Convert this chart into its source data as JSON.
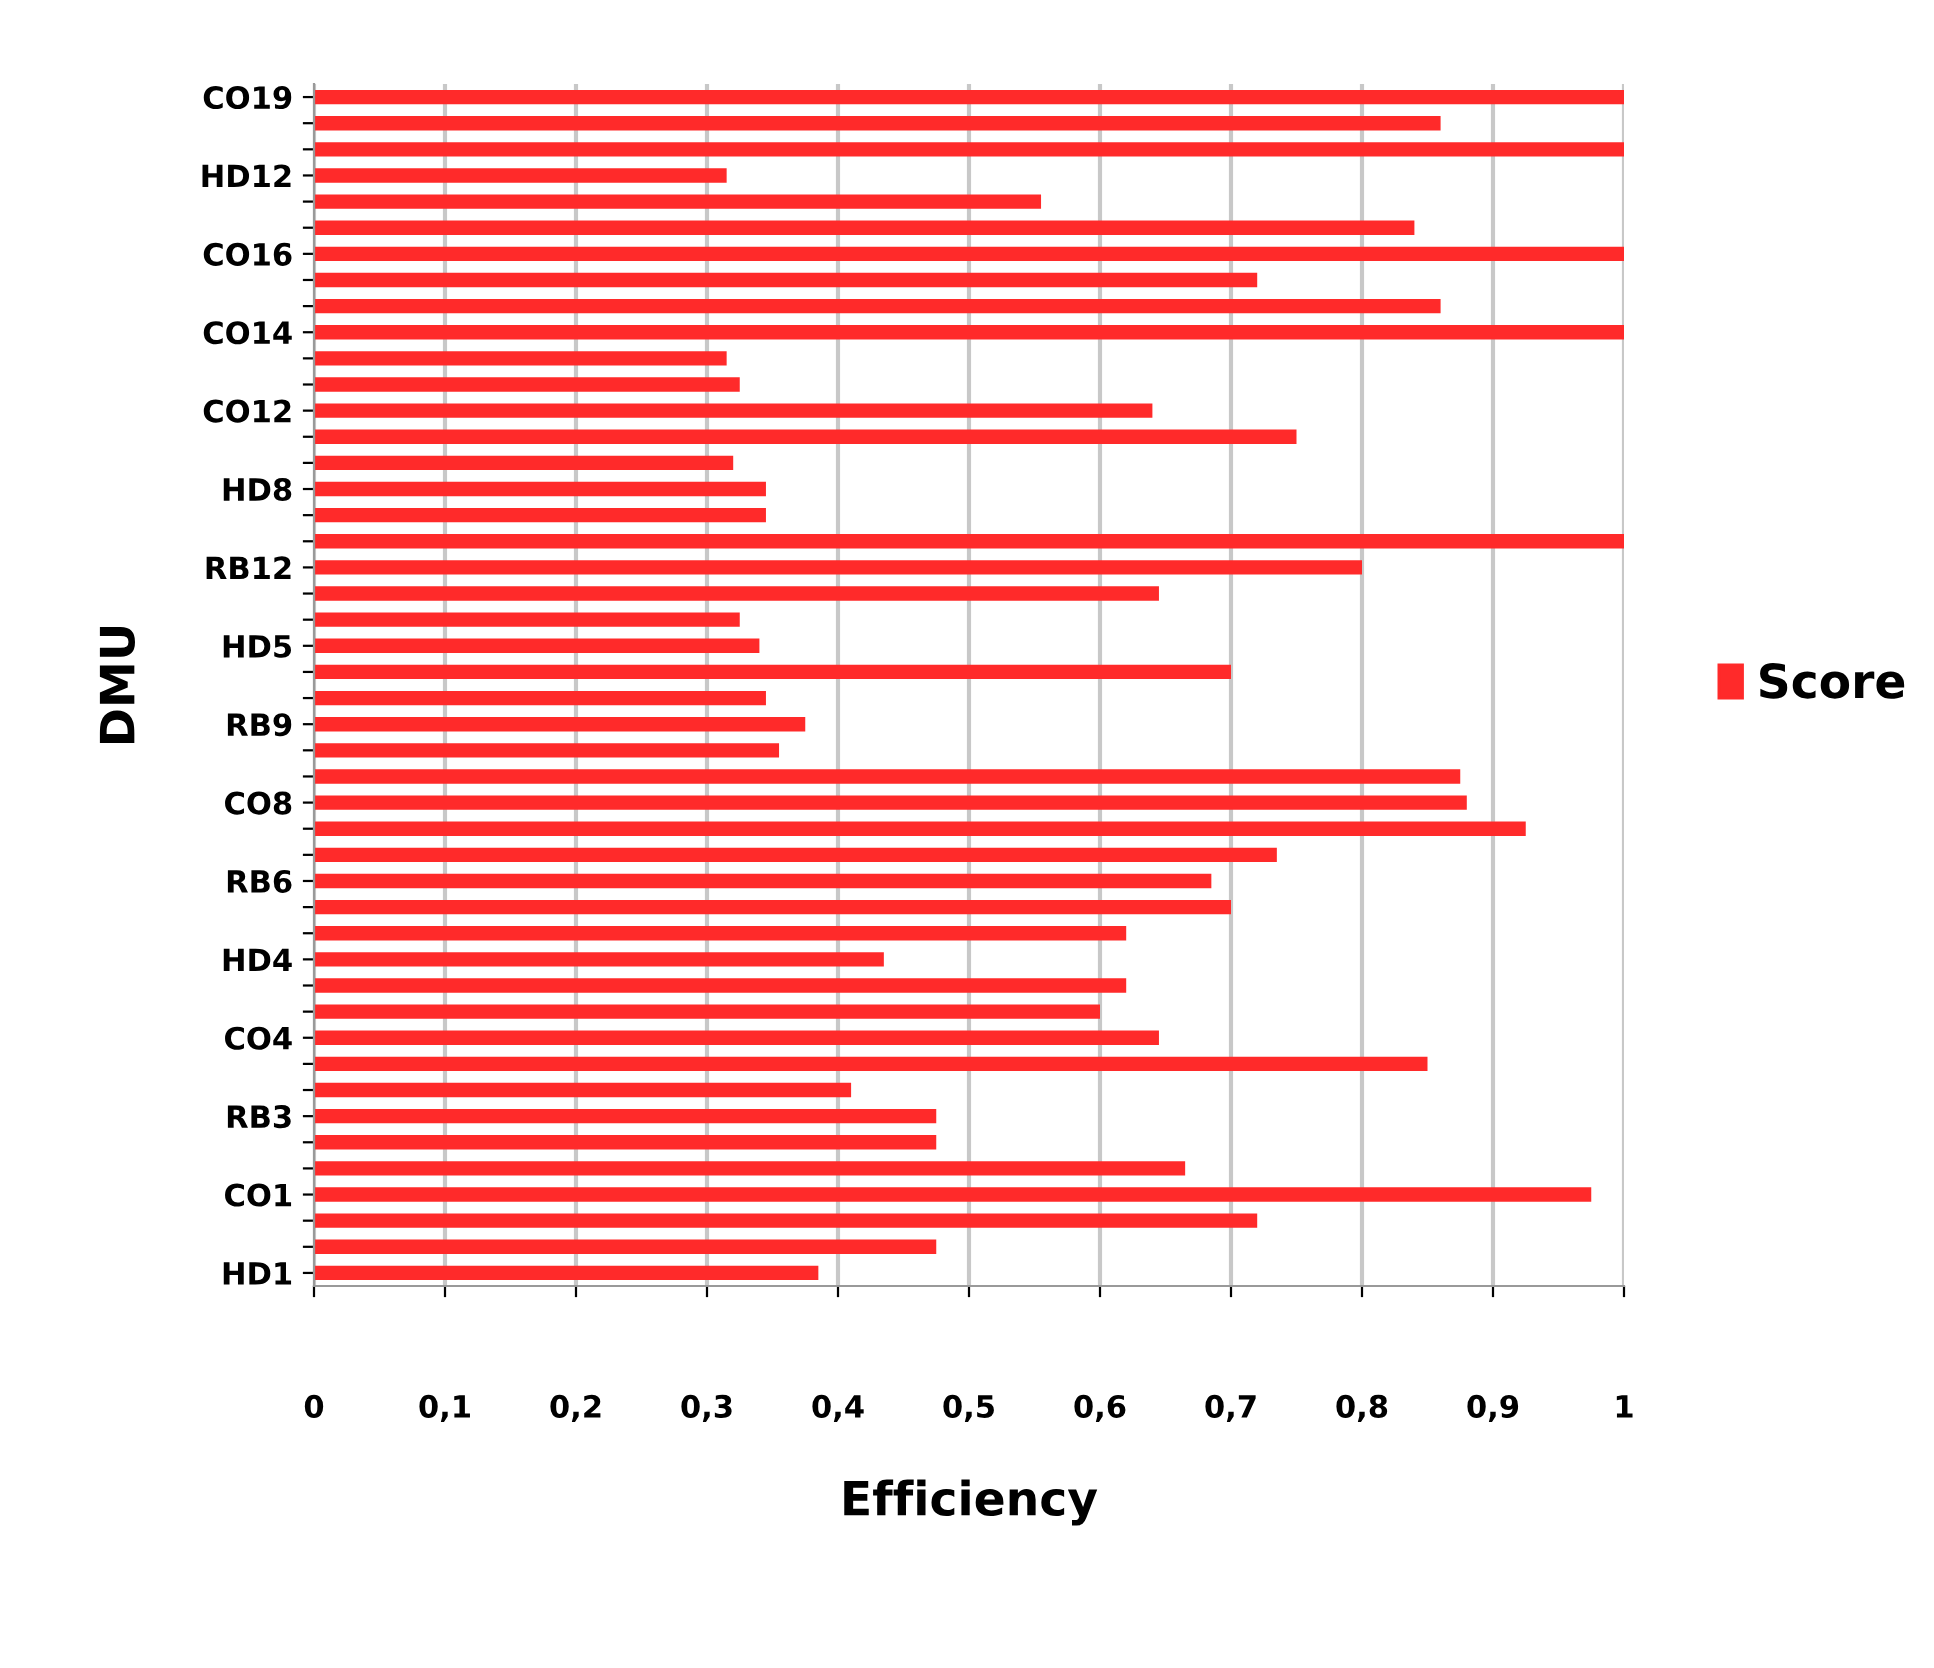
{
  "chart_data": {
    "type": "bar",
    "orientation": "horizontal",
    "xlabel": "Efficiency",
    "ylabel": "DMU",
    "categories": [
      "CO19",
      null,
      null,
      "HD12",
      null,
      null,
      "CO16",
      null,
      null,
      "CO14",
      null,
      null,
      "CO12",
      null,
      null,
      "HD8",
      null,
      null,
      "RB12",
      null,
      null,
      "HD5",
      null,
      null,
      "RB9",
      null,
      null,
      "CO8",
      null,
      null,
      "RB6",
      null,
      null,
      "HD4",
      null,
      null,
      "CO4",
      null,
      null,
      "RB3",
      null,
      null,
      "CO1",
      null,
      null,
      "HD1"
    ],
    "series": [
      {
        "name": "Score",
        "color": "#ff2a2a",
        "values": [
          1.0,
          0.86,
          1.0,
          0.315,
          0.555,
          0.84,
          1.0,
          0.72,
          0.86,
          1.0,
          0.315,
          0.325,
          0.64,
          0.75,
          0.32,
          0.345,
          0.345,
          1.0,
          0.8,
          0.645,
          0.325,
          0.34,
          0.7,
          0.345,
          0.375,
          0.355,
          0.875,
          0.88,
          0.925,
          0.735,
          0.685,
          0.7,
          0.62,
          0.435,
          0.62,
          0.6,
          0.645,
          0.85,
          0.41,
          0.475,
          0.475,
          0.665,
          0.975,
          0.72,
          0.475,
          0.385
        ]
      }
    ],
    "xlim": [
      0,
      1
    ],
    "xticks": [
      0,
      {
        "value": 0.1,
        "label": "0,1"
      },
      {
        "value": 0.2,
        "label": "0,2"
      },
      {
        "value": 0.3,
        "label": "0,3"
      },
      {
        "value": 0.4,
        "label": "0,4"
      },
      {
        "value": 0.5,
        "label": "0,5"
      },
      {
        "value": 0.6,
        "label": "0,6"
      },
      {
        "value": 0.7,
        "label": "0,7"
      },
      {
        "value": 0.8,
        "label": "0,8"
      },
      {
        "value": 0.9,
        "label": "0,9"
      },
      1
    ],
    "grid": "x",
    "legend": "right"
  }
}
